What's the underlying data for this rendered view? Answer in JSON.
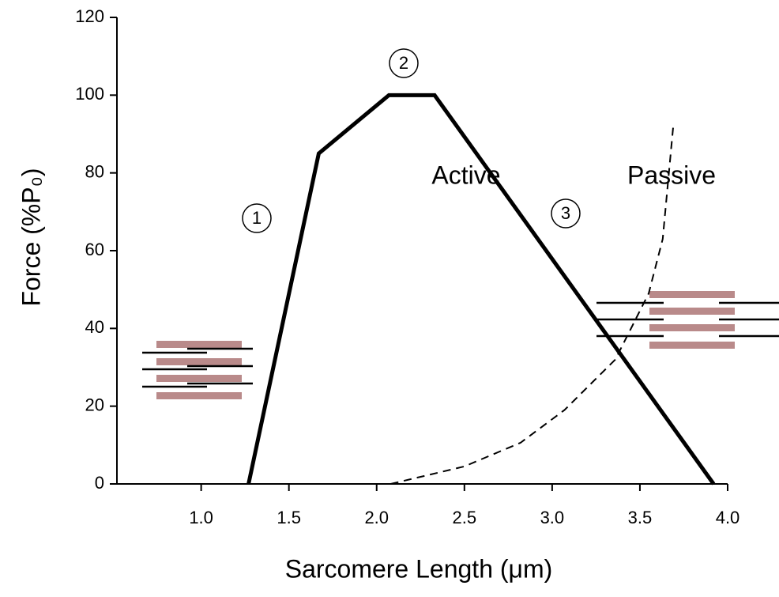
{
  "chart_data": {
    "type": "line",
    "x_label": "Sarcomere Length (μm)",
    "y_label": "Force (%P₀)",
    "xlim": [
      0.52,
      4.0
    ],
    "ylim": [
      0,
      120
    ],
    "xticks": [
      {
        "value": 1,
        "label": "1.0"
      },
      {
        "value": 1.5,
        "label": "1.5"
      },
      {
        "value": 2,
        "label": "2.0"
      },
      {
        "value": 2.5,
        "label": "2.5"
      },
      {
        "value": 3,
        "label": "3.0"
      },
      {
        "value": 3.5,
        "label": "3.5"
      },
      {
        "value": 4,
        "label": "4.0"
      }
    ],
    "yticks": [
      0,
      20,
      40,
      60,
      80,
      100,
      120
    ],
    "grid": false,
    "series": [
      {
        "name": "Active",
        "color": "#000000",
        "style": "solid",
        "x": [
          1.27,
          1.67,
          2.07,
          2.33,
          3.92
        ],
        "values": [
          0,
          85,
          100,
          100,
          0
        ]
      },
      {
        "name": "Passive",
        "color": "#000000",
        "style": "dashed",
        "x": [
          2.08,
          2.5,
          2.82,
          3.07,
          3.36,
          3.55,
          3.63,
          3.69
        ],
        "values": [
          0,
          4.5,
          10.6,
          19,
          32,
          49,
          63,
          92
        ]
      }
    ],
    "annotations": [
      "1",
      "2",
      "3"
    ]
  }
}
